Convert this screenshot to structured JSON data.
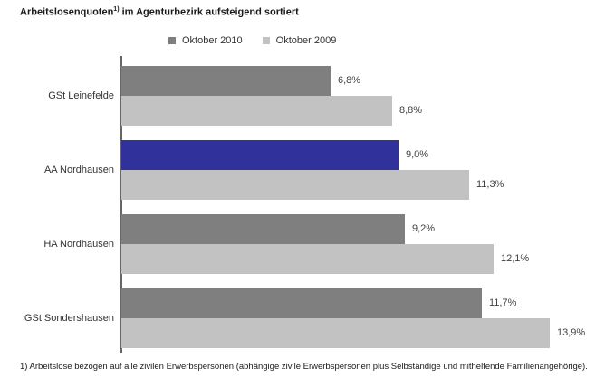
{
  "title": {
    "main": "Arbeitslosenquoten",
    "sup": "1)",
    "rest": " im Agenturbezirk aufsteigend sortiert"
  },
  "legend": [
    {
      "label": "Oktober 2010",
      "color": "#7f7f7f"
    },
    {
      "label": "Oktober 2009",
      "color": "#c2c2c2"
    }
  ],
  "footnote": "1) Arbeitslose bezogen auf alle zivilen Erwerbspersonen (abhängige zivile Erwerbspersonen plus Selbständige und mithelfende Familienangehörige).",
  "chart_data": {
    "type": "bar",
    "orientation": "horizontal",
    "title": "Arbeitslosenquoten 1) im Agenturbezirk aufsteigend sortiert",
    "categories": [
      "GSt Leinefelde",
      "AA Nordhausen",
      "HA Nordhausen",
      "GSt Sondershausen"
    ],
    "series": [
      {
        "name": "Oktober 2010",
        "values": [
          6.8,
          9.0,
          9.2,
          11.7
        ],
        "labels": [
          "6,8%",
          "9,0%",
          "9,2%",
          "11,7%"
        ],
        "color": "#7f7f7f"
      },
      {
        "name": "Oktober 2009",
        "values": [
          8.8,
          11.3,
          12.1,
          13.9
        ],
        "labels": [
          "8,8%",
          "11,3%",
          "12,1%",
          "13,9%"
        ],
        "color": "#c2c2c2"
      }
    ],
    "highlight": {
      "category": "AA Nordhausen",
      "series": "Oktober 2010",
      "color": "#31319c"
    },
    "xlim": [
      0,
      14.5
    ],
    "value_suffix": "%",
    "grid": false,
    "legend_position": "top",
    "sorted": "ascending"
  }
}
